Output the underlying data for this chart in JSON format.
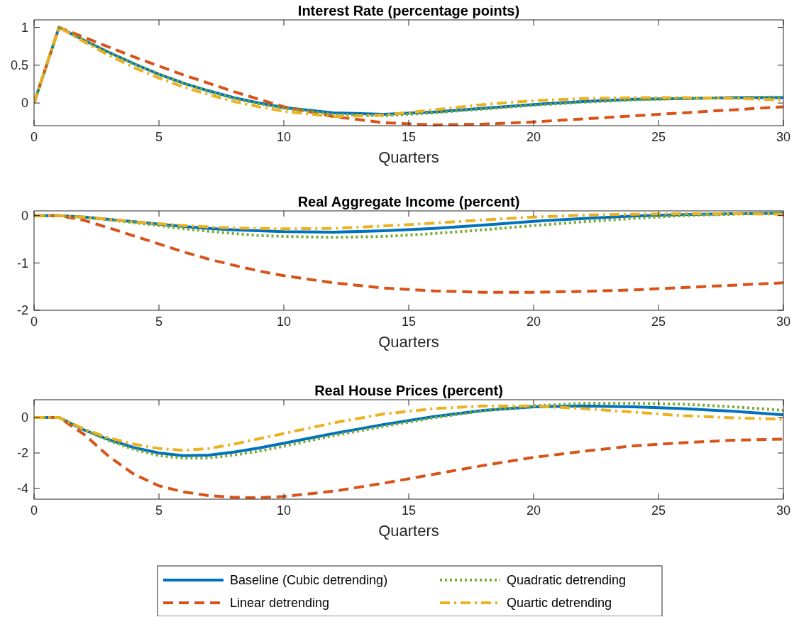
{
  "chart_data": [
    {
      "type": "line",
      "title": "Interest Rate (percentage points)",
      "xlabel": "Quarters",
      "x": [
        0,
        1,
        2,
        3,
        4,
        5,
        6,
        7,
        8,
        9,
        10,
        12,
        14,
        16,
        18,
        20,
        22,
        24,
        26,
        28,
        30
      ],
      "xlim": [
        0,
        30
      ],
      "xticks": [
        0,
        5,
        10,
        15,
        20,
        25,
        30
      ],
      "ylim": [
        -0.3,
        1.1
      ],
      "yticks": [
        0,
        0.5,
        1
      ],
      "grid": false,
      "legend": false,
      "series": [
        {
          "color": "#0072bd",
          "line_style": "solid",
          "values": [
            0,
            1,
            0.83,
            0.67,
            0.52,
            0.38,
            0.26,
            0.16,
            0.07,
            0.0,
            -0.06,
            -0.13,
            -0.15,
            -0.12,
            -0.07,
            -0.02,
            0.02,
            0.05,
            0.06,
            0.07,
            0.07
          ]
        },
        {
          "color": "#d95319",
          "line_style": "dashed",
          "values": [
            0,
            1,
            0.87,
            0.74,
            0.61,
            0.49,
            0.37,
            0.26,
            0.15,
            0.05,
            -0.05,
            -0.18,
            -0.26,
            -0.29,
            -0.28,
            -0.25,
            -0.21,
            -0.17,
            -0.13,
            -0.09,
            -0.05
          ]
        },
        {
          "color": "#77ac30",
          "line_style": "dotted",
          "values": [
            0,
            1,
            0.83,
            0.67,
            0.52,
            0.38,
            0.26,
            0.15,
            0.06,
            -0.01,
            -0.07,
            -0.15,
            -0.17,
            -0.13,
            -0.08,
            -0.03,
            0.01,
            0.04,
            0.06,
            0.07,
            0.08
          ]
        },
        {
          "color": "#edb120",
          "line_style": "dashdot",
          "values": [
            0,
            1,
            0.81,
            0.63,
            0.47,
            0.33,
            0.21,
            0.11,
            0.02,
            -0.05,
            -0.11,
            -0.18,
            -0.16,
            -0.09,
            -0.02,
            0.03,
            0.06,
            0.07,
            0.07,
            0.06,
            0.04
          ]
        }
      ]
    },
    {
      "type": "line",
      "title": "Real Aggregate Income (percent)",
      "xlabel": "Quarters",
      "x": [
        0,
        1,
        2,
        3,
        4,
        5,
        6,
        7,
        8,
        9,
        10,
        12,
        14,
        16,
        18,
        20,
        22,
        24,
        26,
        28,
        30
      ],
      "xlim": [
        0,
        30
      ],
      "xticks": [
        0,
        5,
        10,
        15,
        20,
        25,
        30
      ],
      "ylim": [
        -2,
        0.1
      ],
      "yticks": [
        -2,
        -1,
        0
      ],
      "grid": false,
      "legend": false,
      "series": [
        {
          "color": "#0072bd",
          "line_style": "solid",
          "values": [
            0,
            0,
            -0.03,
            -0.08,
            -0.13,
            -0.18,
            -0.23,
            -0.27,
            -0.3,
            -0.32,
            -0.34,
            -0.35,
            -0.32,
            -0.27,
            -0.2,
            -0.12,
            -0.06,
            -0.01,
            0.02,
            0.04,
            0.05
          ]
        },
        {
          "color": "#d95319",
          "line_style": "dashed",
          "values": [
            0,
            0,
            -0.1,
            -0.26,
            -0.43,
            -0.6,
            -0.77,
            -0.92,
            -1.05,
            -1.17,
            -1.27,
            -1.42,
            -1.53,
            -1.59,
            -1.62,
            -1.62,
            -1.6,
            -1.57,
            -1.52,
            -1.47,
            -1.42
          ]
        },
        {
          "color": "#77ac30",
          "line_style": "dotted",
          "values": [
            0,
            0,
            -0.04,
            -0.09,
            -0.15,
            -0.21,
            -0.28,
            -0.33,
            -0.38,
            -0.42,
            -0.44,
            -0.46,
            -0.44,
            -0.38,
            -0.3,
            -0.21,
            -0.13,
            -0.06,
            0,
            0.03,
            0.05
          ]
        },
        {
          "color": "#edb120",
          "line_style": "dashdot",
          "values": [
            0,
            0,
            -0.03,
            -0.08,
            -0.13,
            -0.17,
            -0.21,
            -0.24,
            -0.26,
            -0.27,
            -0.28,
            -0.27,
            -0.22,
            -0.16,
            -0.09,
            -0.03,
            0.01,
            0.03,
            0.04,
            0.04,
            0.03
          ]
        }
      ]
    },
    {
      "type": "line",
      "title": "Real House Prices (percent)",
      "xlabel": "Quarters",
      "x": [
        0,
        1,
        2,
        3,
        4,
        5,
        6,
        7,
        8,
        9,
        10,
        12,
        14,
        16,
        18,
        20,
        22,
        24,
        26,
        28,
        30
      ],
      "xlim": [
        0,
        30
      ],
      "xticks": [
        0,
        5,
        10,
        15,
        20,
        25,
        30
      ],
      "ylim": [
        -4.6,
        1
      ],
      "yticks": [
        -4,
        -2,
        0
      ],
      "grid": false,
      "legend": "bottom",
      "series": [
        {
          "name": "Baseline (Cubic detrending)",
          "color": "#0072bd",
          "line_style": "solid",
          "values": [
            0,
            0,
            -0.7,
            -1.25,
            -1.7,
            -2.0,
            -2.15,
            -2.12,
            -1.95,
            -1.72,
            -1.45,
            -0.9,
            -0.4,
            0.05,
            0.4,
            0.6,
            0.65,
            0.6,
            0.5,
            0.35,
            0.15
          ]
        },
        {
          "name": "Linear detrending",
          "color": "#d95319",
          "line_style": "dashed",
          "values": [
            0,
            0,
            -0.95,
            -2.2,
            -3.2,
            -3.85,
            -4.2,
            -4.4,
            -4.5,
            -4.52,
            -4.45,
            -4.15,
            -3.7,
            -3.2,
            -2.7,
            -2.25,
            -1.9,
            -1.6,
            -1.42,
            -1.28,
            -1.22
          ]
        },
        {
          "name": "Quadratic detrending",
          "color": "#77ac30",
          "line_style": "dotted",
          "values": [
            0,
            0,
            -0.7,
            -1.3,
            -1.8,
            -2.15,
            -2.3,
            -2.28,
            -2.12,
            -1.9,
            -1.62,
            -1.02,
            -0.5,
            -0.02,
            0.38,
            0.65,
            0.8,
            0.8,
            0.75,
            0.6,
            0.4
          ]
        },
        {
          "name": "Quartic detrending",
          "color": "#edb120",
          "line_style": "dashdot",
          "values": [
            0,
            0,
            -0.65,
            -1.15,
            -1.5,
            -1.75,
            -1.85,
            -1.75,
            -1.5,
            -1.2,
            -0.9,
            -0.3,
            0.2,
            0.5,
            0.65,
            0.65,
            0.5,
            0.3,
            0.1,
            -0.02,
            -0.1
          ]
        }
      ]
    }
  ]
}
